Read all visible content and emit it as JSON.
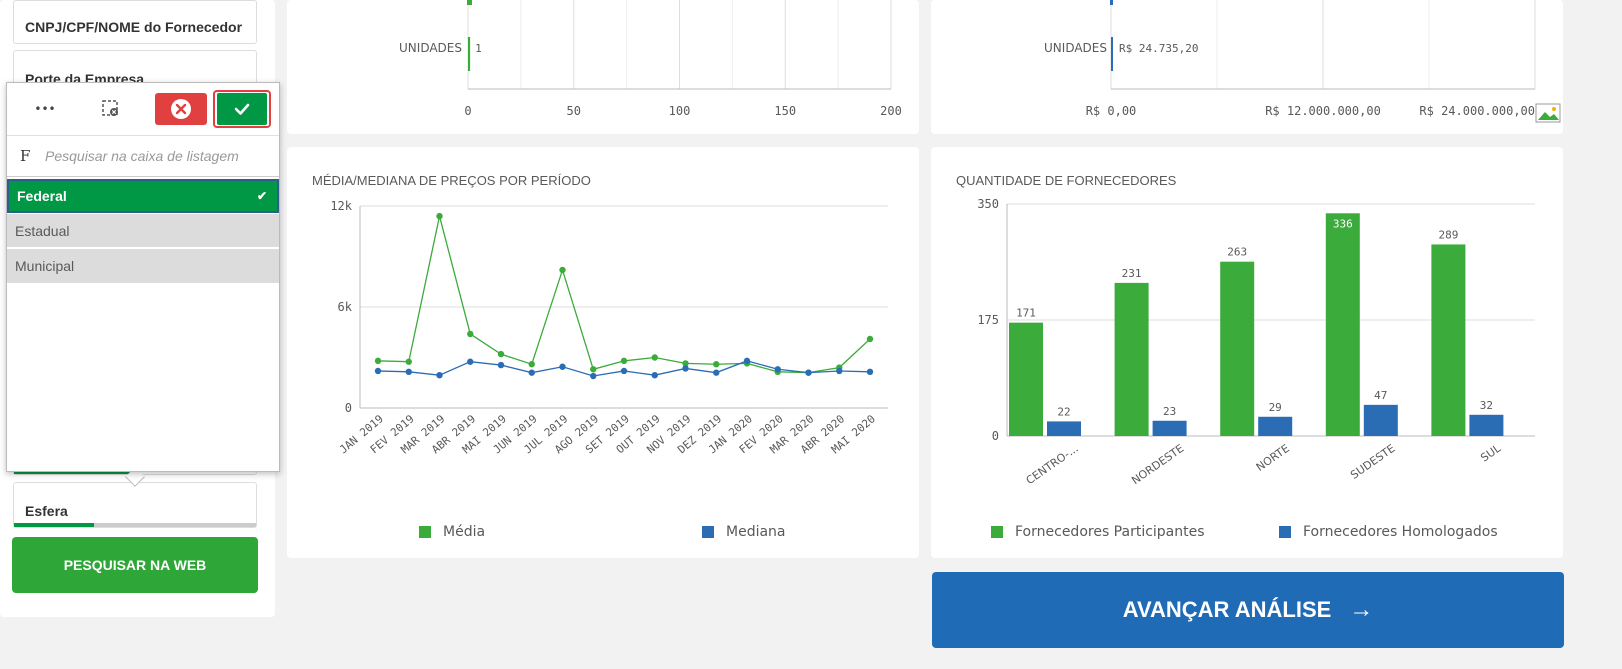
{
  "sidebar": {
    "filter_supplier": "CNPJ/CPF/NOME do Fornecedor",
    "filter_company_size": "Porte da Empresa",
    "filter_esfera": "Esfera",
    "search_web_button": "PESQUISAR NA WEB"
  },
  "listbox": {
    "more_label": "•••",
    "search_letter": "F",
    "search_placeholder": "Pesquisar na caixa de listagem",
    "items": [
      {
        "label": "Federal",
        "selected": true
      },
      {
        "label": "Estadual",
        "selected": false
      },
      {
        "label": "Municipal",
        "selected": false
      }
    ],
    "colors": {
      "selected": "#009845",
      "alternative": "#dcdcdc",
      "cancel": "#e04040",
      "confirm": "#009845"
    }
  },
  "top_left_chart": {
    "chart_data": {
      "type": "bar",
      "orientation": "horizontal",
      "categories": [
        "UNIDADES"
      ],
      "values": [
        1
      ],
      "value_labels": [
        "1"
      ],
      "xlim": [
        0,
        200
      ],
      "ticks": [
        "0",
        "50",
        "100",
        "150",
        "200"
      ]
    }
  },
  "top_right_chart": {
    "chart_data": {
      "type": "bar",
      "orientation": "horizontal",
      "categories": [
        "UNIDADES"
      ],
      "values": [
        24735.2
      ],
      "value_labels": [
        "R$ 24.735,20"
      ],
      "xlim": [
        0,
        24000000
      ],
      "ticks": [
        "R$ 0,00",
        "R$ 12.000.000,00",
        "R$ 24.000.000,00"
      ]
    }
  },
  "line_chart": {
    "chart_data": {
      "type": "line",
      "title": "MÉDIA/MEDIANA DE PREÇOS POR PERÍODO",
      "x": [
        "JAN 2019",
        "FEV 2019",
        "MAR 2019",
        "ABR 2019",
        "MAI 2019",
        "JUN 2019",
        "JUL 2019",
        "AGO 2019",
        "SET 2019",
        "OUT 2019",
        "NOV 2019",
        "DEZ 2019",
        "JAN 2020",
        "FEV 2020",
        "MAR 2020",
        "ABR 2020",
        "MAI 2020"
      ],
      "series": [
        {
          "name": "Média",
          "color": "#3bab3b",
          "values": [
            2800,
            2750,
            11400,
            4400,
            3200,
            2600,
            8200,
            2300,
            2800,
            3000,
            2650,
            2600,
            2650,
            2150,
            2100,
            2400,
            4100
          ]
        },
        {
          "name": "Mediana",
          "color": "#2a6db5",
          "values": [
            2200,
            2150,
            1950,
            2750,
            2550,
            2100,
            2450,
            1900,
            2200,
            1950,
            2350,
            2100,
            2800,
            2300,
            2100,
            2200,
            2150
          ]
        }
      ],
      "ylim": [
        0,
        12000
      ],
      "y_ticks": [
        {
          "value": 0,
          "label": "0"
        },
        {
          "value": 6000,
          "label": "6k"
        },
        {
          "value": 12000,
          "label": "12k"
        }
      ]
    }
  },
  "bar_chart": {
    "chart_data": {
      "type": "bar",
      "title": "QUANTIDADE DE FORNECEDORES",
      "categories": [
        "CENTRO-...",
        "NORDESTE",
        "NORTE",
        "SUDESTE",
        "SUL"
      ],
      "series": [
        {
          "name": "Fornecedores Participantes",
          "color": "#3bab3b",
          "values": [
            171,
            231,
            263,
            336,
            289
          ]
        },
        {
          "name": "Fornecedores Homologados",
          "color": "#2a6db5",
          "values": [
            22,
            23,
            29,
            47,
            32
          ]
        }
      ],
      "ylim": [
        0,
        350
      ],
      "y_ticks": [
        {
          "value": 0,
          "label": "0"
        },
        {
          "value": 175,
          "label": "175"
        },
        {
          "value": 350,
          "label": "350"
        }
      ]
    }
  },
  "advance_button": "AVANÇAR ANÁLISE",
  "advance_arrow": "→"
}
